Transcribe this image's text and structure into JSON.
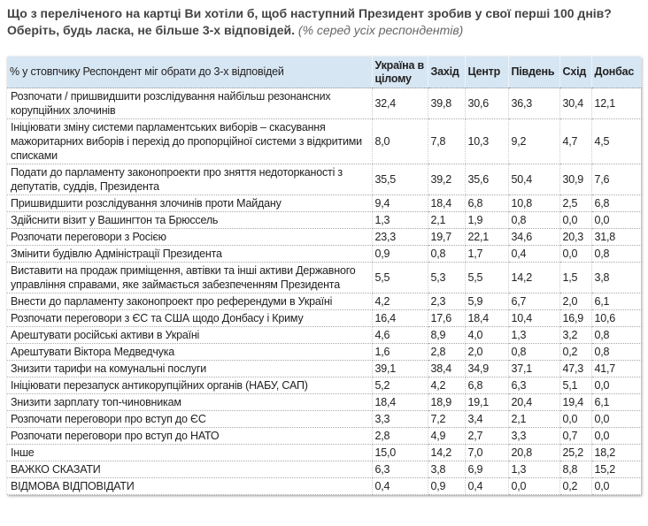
{
  "title": {
    "question": "Що з переліченого на картці Ви хотіли б, щоб наступний Президент зробив у свої перші 100 днів? Оберіть, будь ласка, не більше 3-х відповідей.",
    "note": "(% серед усіх респондентів)"
  },
  "table": {
    "headers": [
      "% у стовпчику Респондент міг обрати до 3-х відповідей",
      "Україна в цілому",
      "Захід",
      "Центр",
      "Південь",
      "Схід",
      "Донбас"
    ],
    "rows": [
      {
        "label": "Розпочати / пришвидшити розслідування найбільш резонансних корупційних злочинів",
        "values": [
          "32,4",
          "39,8",
          "30,6",
          "36,3",
          "30,4",
          "12,1"
        ]
      },
      {
        "label": "Ініціювати зміну системи парламентських виборів – скасування мажоритарних виборів і перехід до пропорційної системи з відкритими списками",
        "values": [
          "8,0",
          "7,8",
          "10,3",
          "9,2",
          "4,7",
          "4,5"
        ]
      },
      {
        "label": "Подати до парламенту законопроекти про зняття недоторканості з депутатів, суддів, Президента",
        "values": [
          "35,5",
          "39,2",
          "35,6",
          "50,4",
          "30,9",
          "7,6"
        ]
      },
      {
        "label": "Пришвидшити розслідування злочинів проти Майдану",
        "values": [
          "9,4",
          "18,4",
          "6,8",
          "10,8",
          "2,5",
          "6,8"
        ]
      },
      {
        "label": "Здійснити візит у Вашингтон та Брюссель",
        "values": [
          "1,3",
          "2,1",
          "1,9",
          "0,8",
          "0,0",
          "0,0"
        ]
      },
      {
        "label": "Розпочати переговори з Росією",
        "values": [
          "23,3",
          "19,7",
          "22,1",
          "34,6",
          "20,3",
          "31,8"
        ]
      },
      {
        "label": "Змінити будівлю Адміністрації Президента",
        "values": [
          "0,9",
          "0,8",
          "1,7",
          "0,4",
          "0,0",
          "0,8"
        ]
      },
      {
        "label": "Виставити на продаж приміщення, автівки та інші активи Державного управління справами, яке займається забезпеченням Президента",
        "values": [
          "5,5",
          "5,3",
          "5,5",
          "14,2",
          "1,5",
          "3,8"
        ]
      },
      {
        "label": "Внести до парламенту законопроект про референдуми в Україні",
        "values": [
          "4,2",
          "2,3",
          "5,9",
          "6,7",
          "2,0",
          "6,1"
        ]
      },
      {
        "label": "Розпочати переговори з ЄС та США щодо Донбасу і Криму",
        "values": [
          "16,4",
          "17,6",
          "18,4",
          "10,4",
          "16,9",
          "10,6"
        ]
      },
      {
        "label": "Арештувати російські активи в Україні",
        "values": [
          "4,6",
          "8,9",
          "4,0",
          "1,3",
          "3,2",
          "0,8"
        ]
      },
      {
        "label": "Арештувати Віктора Медведчука",
        "values": [
          "1,6",
          "2,8",
          "2,0",
          "0,8",
          "0,2",
          "0,8"
        ]
      },
      {
        "label": "Знизити тарифи на комунальні послуги",
        "values": [
          "39,1",
          "38,4",
          "34,9",
          "37,1",
          "47,3",
          "41,7"
        ]
      },
      {
        "label": "Ініціювати перезапуск антикорупційних органів (НАБУ, САП)",
        "values": [
          "5,2",
          "4,2",
          "6,8",
          "6,3",
          "5,1",
          "0,0"
        ]
      },
      {
        "label": "Знизити зарплату топ-чиновникам",
        "values": [
          "18,4",
          "18,9",
          "19,1",
          "20,4",
          "19,4",
          "6,1"
        ]
      },
      {
        "label": "Розпочати переговори про вступ до ЄС",
        "values": [
          "3,3",
          "7,2",
          "3,4",
          "2,1",
          "0,0",
          "0,0"
        ]
      },
      {
        "label": "Розпочати переговори про вступ до НАТО",
        "values": [
          "2,8",
          "4,9",
          "2,7",
          "3,3",
          "0,7",
          "0,0"
        ]
      },
      {
        "label": "Інше",
        "values": [
          "15,0",
          "14,2",
          "7,0",
          "20,8",
          "25,2",
          "18,2"
        ]
      },
      {
        "label": "ВАЖКО СКАЗАТИ",
        "values": [
          "6,3",
          "3,8",
          "6,9",
          "1,3",
          "8,8",
          "15,2"
        ]
      },
      {
        "label": "ВІДМОВА ВІДПОВІДАТИ",
        "values": [
          "0,4",
          "0,9",
          "0,4",
          "0,0",
          "0,2",
          "0,0"
        ]
      }
    ]
  }
}
